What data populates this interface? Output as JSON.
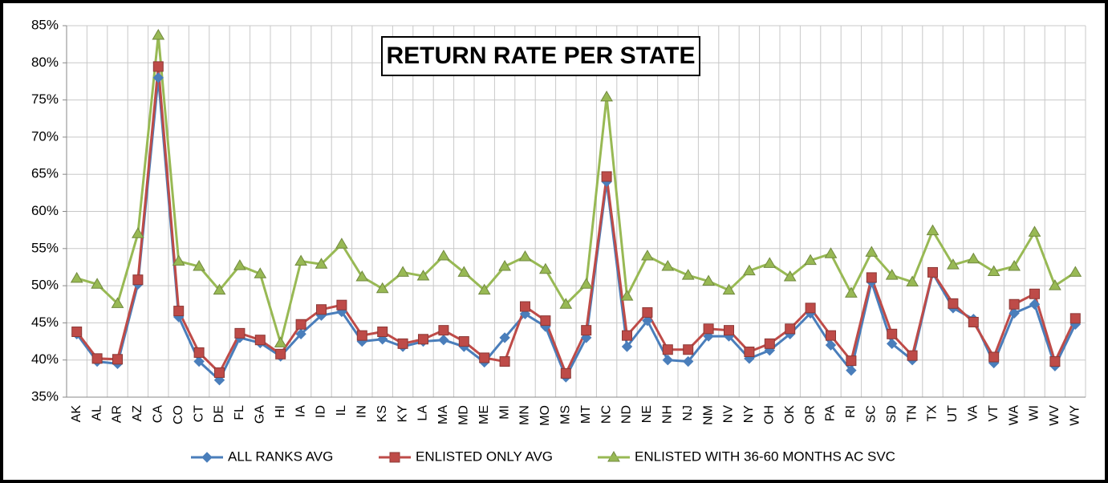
{
  "chart_data": {
    "type": "line",
    "title": "RETURN RATE PER STATE",
    "categories": [
      "AK",
      "AL",
      "AR",
      "AZ",
      "CA",
      "CO",
      "CT",
      "DE",
      "FL",
      "GA",
      "HI",
      "IA",
      "ID",
      "IL",
      "IN",
      "KS",
      "KY",
      "LA",
      "MA",
      "MD",
      "ME",
      "MI",
      "MN",
      "MO",
      "MS",
      "MT",
      "NC",
      "ND",
      "NE",
      "NH",
      "NJ",
      "NM",
      "NV",
      "NY",
      "OH",
      "OK",
      "OR",
      "PA",
      "RI",
      "SC",
      "SD",
      "TN",
      "TX",
      "UT",
      "VA",
      "VT",
      "WA",
      "WI",
      "WV",
      "WY"
    ],
    "series": [
      {
        "name": "ALL RANKS AVG",
        "color": "#4a7ebb",
        "marker": "diamond",
        "values": [
          43.5,
          39.8,
          39.5,
          50.2,
          78,
          45.8,
          39.8,
          37.3,
          43,
          42.3,
          40.5,
          43.5,
          46,
          46.5,
          42.5,
          42.8,
          41.8,
          42.5,
          42.7,
          41.8,
          39.7,
          43,
          46.2,
          44.5,
          37.7,
          43,
          64,
          41.8,
          45.3,
          40,
          39.8,
          43.2,
          43.2,
          40.2,
          41.3,
          43.5,
          46.3,
          42,
          38.6,
          50.5,
          42.2,
          40,
          51.7,
          47,
          45.5,
          39.6,
          46.3,
          47.5,
          39.2,
          44.8
        ]
      },
      {
        "name": "ENLISTED ONLY AVG",
        "color": "#be4b48",
        "marker": "square",
        "values": [
          43.8,
          40.2,
          40.1,
          50.8,
          79.5,
          46.6,
          41,
          38.3,
          43.6,
          42.7,
          40.8,
          44.8,
          46.8,
          47.4,
          43.3,
          43.8,
          42.2,
          42.8,
          44,
          42.5,
          40.3,
          39.8,
          47.2,
          45.3,
          38.2,
          44,
          64.7,
          43.3,
          46.4,
          41.4,
          41.4,
          44.2,
          44,
          41.1,
          42.2,
          44.2,
          47,
          43.3,
          39.9,
          51.1,
          43.5,
          40.6,
          51.8,
          47.6,
          45.1,
          40.4,
          47.5,
          48.9,
          39.8,
          45.6
        ]
      },
      {
        "name": "ENLISTED WITH 36-60 MONTHS AC SVC",
        "color": "#98b954",
        "marker": "triangle",
        "values": [
          51,
          50.2,
          47.6,
          57,
          83.7,
          53.3,
          52.6,
          49.4,
          52.7,
          51.6,
          42.3,
          53.3,
          52.9,
          55.6,
          51.2,
          49.6,
          51.8,
          51.3,
          54,
          51.8,
          49.4,
          52.6,
          53.9,
          52.2,
          47.5,
          50.2,
          75.4,
          48.6,
          54,
          52.6,
          51.4,
          50.6,
          49.4,
          52,
          53,
          51.2,
          53.4,
          54.3,
          49,
          54.5,
          51.4,
          50.5,
          57.4,
          52.8,
          53.6,
          51.9,
          52.6,
          57.2,
          50,
          51.8
        ]
      }
    ],
    "ylim": [
      35,
      85
    ],
    "yticks": [
      {
        "value": 35,
        "label": "35%"
      },
      {
        "value": 40,
        "label": "40%"
      },
      {
        "value": 45,
        "label": "45%"
      },
      {
        "value": 50,
        "label": "50%"
      },
      {
        "value": 55,
        "label": "55%"
      },
      {
        "value": 60,
        "label": "60%"
      },
      {
        "value": 65,
        "label": "65%"
      },
      {
        "value": 70,
        "label": "70%"
      },
      {
        "value": 75,
        "label": "75%"
      },
      {
        "value": 80,
        "label": "80%"
      },
      {
        "value": 85,
        "label": "85%"
      }
    ],
    "grid": true,
    "legend": "bottom"
  }
}
